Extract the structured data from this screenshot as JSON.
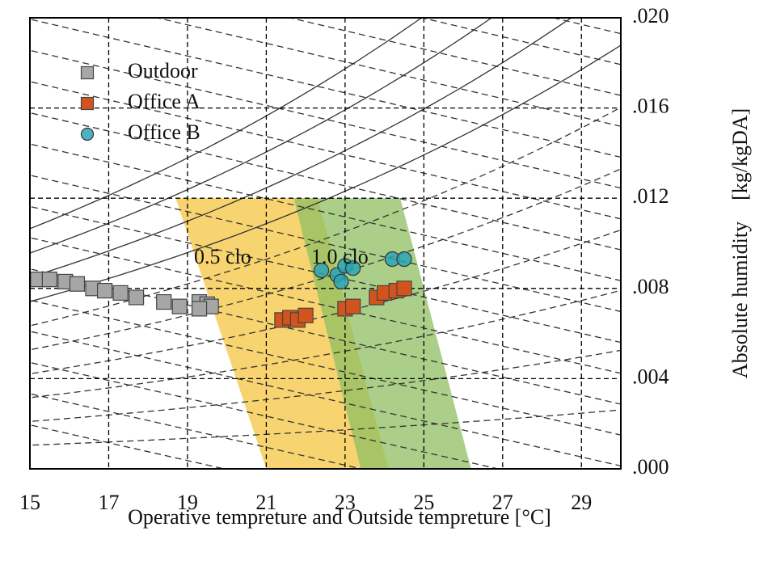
{
  "chart_data": {
    "type": "scatter",
    "x_label": "Operative tempreture and Outside tempreture [°C]",
    "y_label": "Absolute humidity　[kg/kgDA]",
    "xlim": [
      15,
      30
    ],
    "xticks": [
      15,
      17,
      19,
      21,
      23,
      25,
      27,
      29
    ],
    "ylim": [
      0,
      0.02
    ],
    "yticks": [
      {
        "value": 0,
        "label": ".000"
      },
      {
        "value": 0.004,
        "label": ".004"
      },
      {
        "value": 0.008,
        "label": ".008"
      },
      {
        "value": 0.012,
        "label": ".012"
      },
      {
        "value": 0.016,
        "label": ".016"
      },
      {
        "value": 0.02,
        "label": ".020"
      }
    ],
    "grid": true,
    "legend": "upper left",
    "regions": [
      {
        "label": "0.5 clo",
        "color": "#f5c542",
        "x": [
          18.7,
          22.3,
          24.1,
          21.0
        ],
        "y": [
          0.012,
          0.012,
          0,
          0
        ]
      },
      {
        "label": "1.0 clo",
        "color": "#8fbf60",
        "x": [
          21.7,
          24.4,
          26.2,
          23.4
        ],
        "y": [
          0.012,
          0.012,
          0,
          0
        ]
      }
    ],
    "series": [
      {
        "name": "Outdoor",
        "color": "#a6a6a6",
        "marker": "square",
        "x": [
          15.2,
          15.5,
          15.9,
          16.2,
          16.6,
          16.9,
          17.3,
          17.7,
          18.4,
          18.8,
          19.3,
          19.5,
          19.6,
          19.3
        ],
        "values": [
          0.0084,
          0.0084,
          0.0083,
          0.0082,
          0.008,
          0.0079,
          0.0078,
          0.0076,
          0.0074,
          0.0072,
          0.0074,
          0.0073,
          0.0072,
          0.0071
        ]
      },
      {
        "name": "Office A",
        "color": "#d2541c",
        "marker": "square",
        "x": [
          21.4,
          21.6,
          21.8,
          22.0,
          23.0,
          23.2,
          23.8,
          24.0,
          24.3,
          24.5
        ],
        "values": [
          0.0066,
          0.0067,
          0.0066,
          0.0068,
          0.0071,
          0.0072,
          0.0076,
          0.0078,
          0.0079,
          0.008
        ]
      },
      {
        "name": "Office B",
        "color": "#2aa5b5",
        "marker": "circle",
        "x": [
          22.4,
          22.8,
          23.0,
          23.2,
          24.2,
          24.5,
          22.9
        ],
        "values": [
          0.0088,
          0.0086,
          0.009,
          0.0089,
          0.0093,
          0.0093,
          0.0083
        ]
      }
    ]
  }
}
